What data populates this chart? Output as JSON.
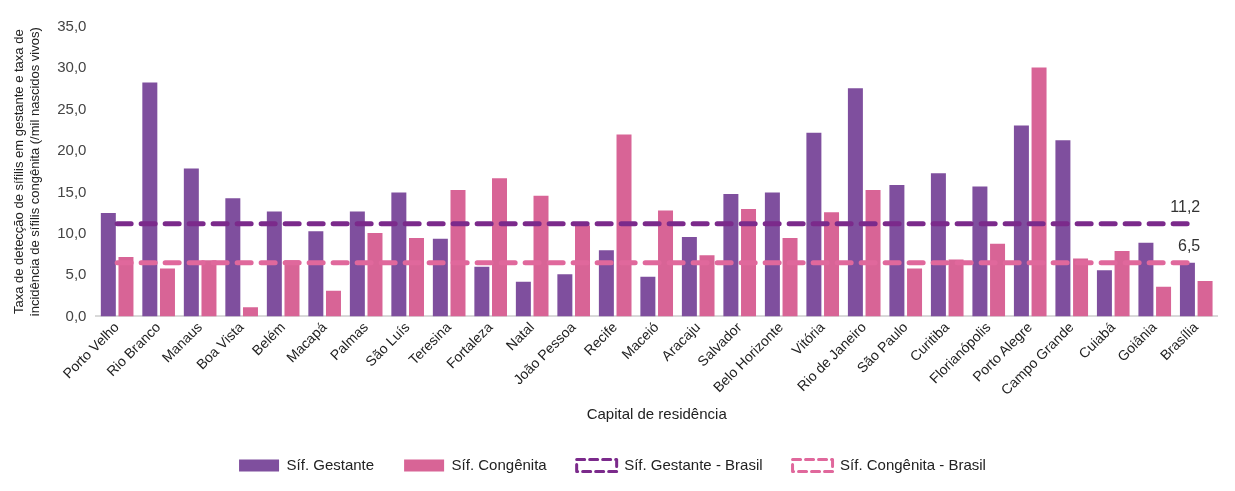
{
  "chart_data": {
    "type": "bar",
    "xlabel": "Capital de residência",
    "ylabel": "Taxa de detecção de sífilis em gestante e taxa de incidência de sífilis congênita (/mil nascidos vivos)",
    "categories": [
      "Porto Velho",
      "Rio Branco",
      "Manaus",
      "Boa Vista",
      "Belém",
      "Macapá",
      "Palmas",
      "São Luís",
      "Teresina",
      "Fortaleza",
      "Natal",
      "João Pessoa",
      "Recife",
      "Maceió",
      "Aracaju",
      "Salvador",
      "Belo Horizonte",
      "Vitória",
      "Rio de Janeiro",
      "São Paulo",
      "Curitiba",
      "Florianópolis",
      "Porto Alegre",
      "Campo Grande",
      "Cuiabá",
      "Goiânia",
      "Brasília"
    ],
    "series": [
      {
        "name": "Síf. Gestante",
        "color": "#7f4f9e",
        "values": [
          12.5,
          28.3,
          17.9,
          14.3,
          12.7,
          10.3,
          12.7,
          15.0,
          9.4,
          6.0,
          4.2,
          5.1,
          8.0,
          4.8,
          9.6,
          14.8,
          15.0,
          22.2,
          27.6,
          15.9,
          17.3,
          15.7,
          23.1,
          21.3,
          5.6,
          8.9,
          6.5
        ]
      },
      {
        "name": "Síf. Congênita",
        "color": "#d86496",
        "values": [
          7.2,
          5.8,
          6.8,
          1.1,
          6.8,
          3.1,
          10.1,
          9.5,
          15.3,
          16.7,
          14.6,
          11.0,
          22.0,
          12.8,
          7.4,
          13.0,
          9.5,
          12.6,
          15.3,
          5.8,
          6.9,
          8.8,
          30.1,
          7.0,
          7.9,
          3.6,
          4.3
        ]
      },
      {
        "name": "Síf. Gestante - Brasil",
        "type": "line",
        "color": "#7b2a8b",
        "line_style": "dashed",
        "values": [
          11.2,
          11.2,
          11.2,
          11.2,
          11.2,
          11.2,
          11.2,
          11.2,
          11.2,
          11.2,
          11.2,
          11.2,
          11.2,
          11.2,
          11.2,
          11.2,
          11.2,
          11.2,
          11.2,
          11.2,
          11.2,
          11.2,
          11.2,
          11.2,
          11.2,
          11.2,
          11.2
        ],
        "value_labels": [
          null,
          null,
          null,
          null,
          null,
          null,
          null,
          null,
          null,
          null,
          null,
          null,
          null,
          null,
          null,
          null,
          null,
          null,
          null,
          null,
          null,
          null,
          null,
          null,
          null,
          null,
          "11,2"
        ]
      },
      {
        "name": "Síf. Congênita - Brasil",
        "type": "line",
        "color": "#e0689c",
        "line_style": "dashed",
        "values": [
          6.5,
          6.5,
          6.5,
          6.5,
          6.5,
          6.5,
          6.5,
          6.5,
          6.5,
          6.5,
          6.5,
          6.5,
          6.5,
          6.5,
          6.5,
          6.5,
          6.5,
          6.5,
          6.5,
          6.5,
          6.5,
          6.5,
          6.5,
          6.5,
          6.5,
          6.5,
          6.5
        ],
        "value_labels": [
          null,
          null,
          null,
          null,
          null,
          null,
          null,
          null,
          null,
          null,
          null,
          null,
          null,
          null,
          null,
          null,
          null,
          null,
          null,
          null,
          null,
          null,
          null,
          null,
          null,
          null,
          "6,5"
        ]
      }
    ],
    "ylim": [
      0,
      35
    ],
    "yticks": [
      {
        "value": 0,
        "label": "0,0"
      },
      {
        "value": 5,
        "label": "5,0"
      },
      {
        "value": 10,
        "label": "10,0"
      },
      {
        "value": 15,
        "label": "15,0"
      },
      {
        "value": 20,
        "label": "20,0"
      },
      {
        "value": 25,
        "label": "25,0"
      },
      {
        "value": 30,
        "label": "30,0"
      },
      {
        "value": 35,
        "label": "35,0"
      }
    ],
    "grid": false,
    "legend": "bottom",
    "marker": "none"
  }
}
